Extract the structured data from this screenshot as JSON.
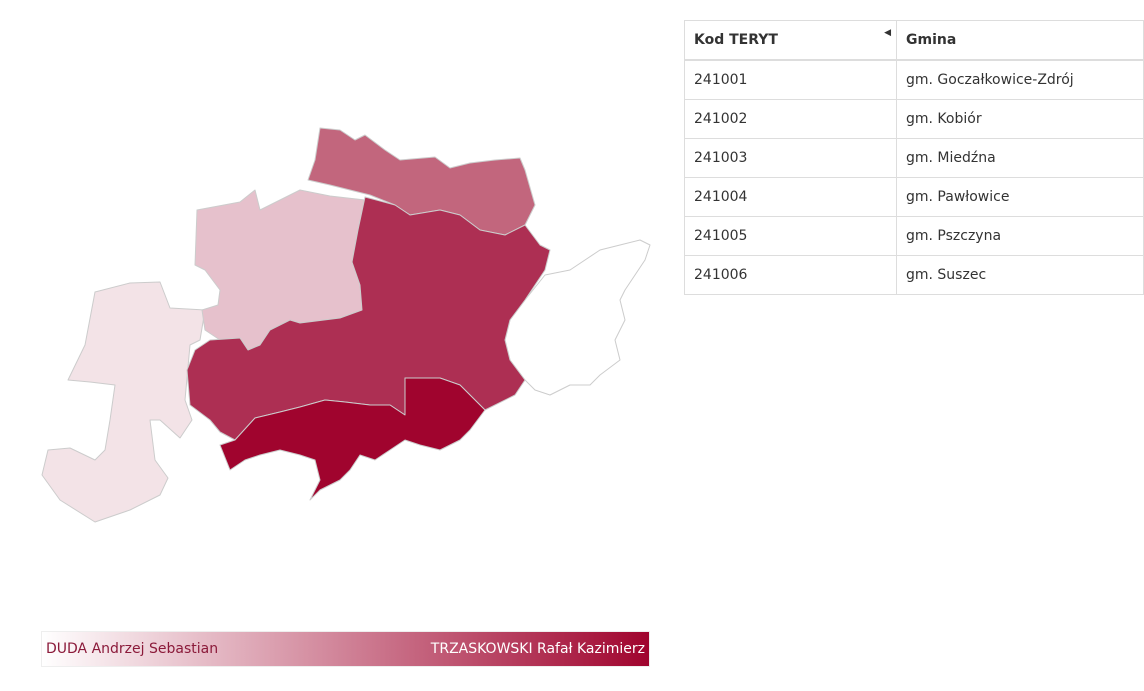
{
  "table": {
    "headers": [
      "Kod TERYT",
      "Gmina"
    ],
    "rows": [
      [
        "241001",
        "gm. Goczałkowice-Zdrój"
      ],
      [
        "241002",
        "gm. Kobiór"
      ],
      [
        "241003",
        "gm. Miedźna"
      ],
      [
        "241004",
        "gm. Pawłowice"
      ],
      [
        "241005",
        "gm. Pszczyna"
      ],
      [
        "241006",
        "gm. Suszec"
      ]
    ]
  },
  "legend": {
    "low": "DUDA Andrzej Sebastian",
    "high": "TRZASKOWSKI Rafał Kazimierz"
  }
}
